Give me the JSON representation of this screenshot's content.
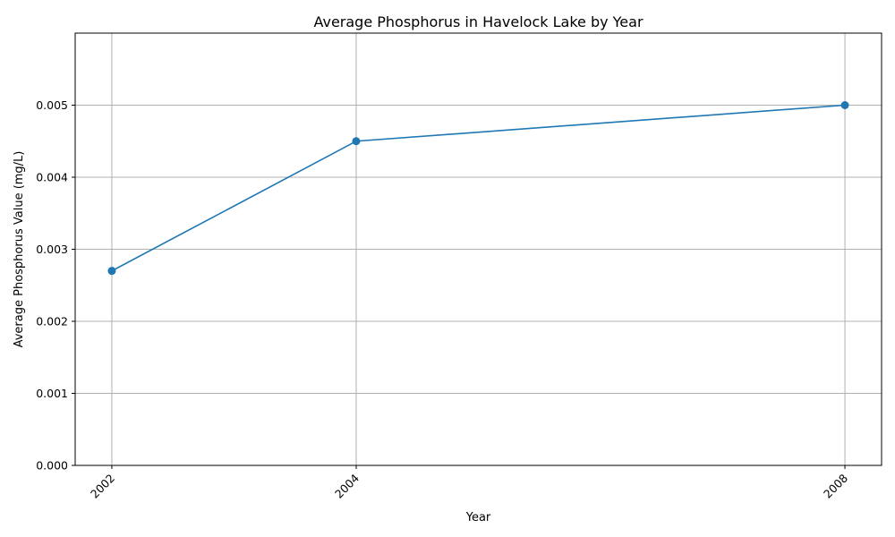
{
  "chart_data": {
    "type": "line",
    "title": "Average Phosphorus in Havelock Lake by Year",
    "xlabel": "Year",
    "ylabel": "Average Phosphorus Value (mg/L)",
    "x": [
      2002,
      2004,
      2008
    ],
    "x_tick_labels": [
      "2002",
      "2004",
      "2008"
    ],
    "y_tick_labels": [
      "0.000",
      "0.001",
      "0.002",
      "0.003",
      "0.004",
      "0.005"
    ],
    "y_ticks": [
      0,
      0.001,
      0.002,
      0.003,
      0.004,
      0.005
    ],
    "series": [
      {
        "values": [
          0.0027,
          0.0045,
          0.005
        ],
        "color": "#1f77b4",
        "marker": "circle"
      }
    ],
    "xlim": [
      2001.7,
      2008.3
    ],
    "ylim": [
      0,
      0.006
    ],
    "grid": true,
    "x_tick_rotation": 45
  }
}
